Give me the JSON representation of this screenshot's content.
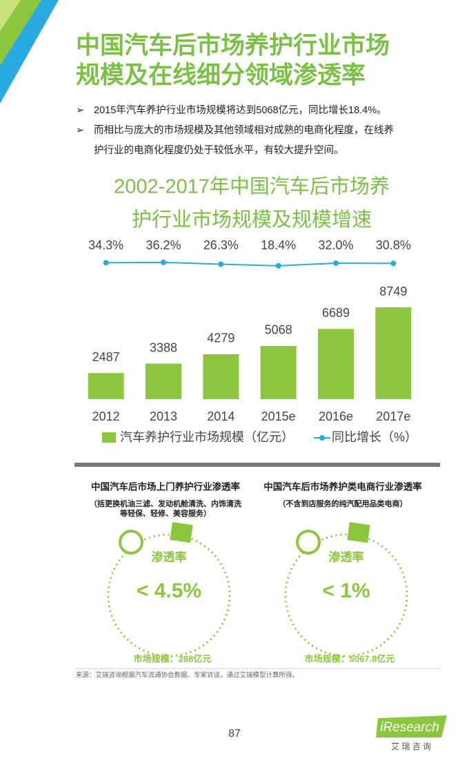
{
  "header": {
    "title": [
      "中国汽车后市场养护行业市场",
      "规模及在线细分领域渗透率"
    ]
  },
  "bullets": [
    [
      "2015年汽车养护行业市场规模将达到5068亿元，同比增长18.4%。"
    ],
    [
      "而相比与庞大的市场规模及其他领域相对成熟的电商化程度，在线养",
      "护行业的电商化程度仍处于较低水平，有较大提升空间。"
    ]
  ],
  "chart_data": {
    "type": "bar-line",
    "title": [
      "2002-2017年中国汽车后市场养",
      "护行业市场规模及规模增速"
    ],
    "categories": [
      "2012",
      "2013",
      "2014",
      "2015e",
      "2016e",
      "2017e"
    ],
    "series": [
      {
        "name": "汽车养护行业市场规模（亿元）",
        "type": "bar",
        "color": "#8cc63f",
        "values": [
          2487,
          3388,
          4279,
          5068,
          6689,
          8749
        ]
      },
      {
        "name": "同比增长（%）",
        "type": "line",
        "axis": "y2",
        "color": "#29abe2",
        "values": [
          34.3,
          36.2,
          26.3,
          18.4,
          32.0,
          30.8
        ],
        "value_labels": [
          "34.3%",
          "36.2%",
          "26.3%",
          "18.4%",
          "32.0%",
          "30.8%"
        ]
      }
    ],
    "ylim": [
      0,
      10000
    ],
    "y2lim": [
      0,
      100
    ],
    "legend": "bottom",
    "grid": false
  },
  "panels": [
    {
      "title": "中国汽车后市场上门养护行业渗透率",
      "note": [
        "（括更换机油三滤、发动机舱清洗、内饰清洗",
        "等轻保、轻修、美容服务）"
      ],
      "label": "渗透率",
      "value": "< 4.5%",
      "size": "市场规模：288亿元"
    },
    {
      "title": "中国汽车后市场养护类电商行业渗透率",
      "note": [
        "（不含到店服务的纯汽配用品类电商）"
      ],
      "label": "渗透率",
      "value": "< 1%",
      "size": "市场规模：5067.8亿元"
    }
  ],
  "source": "来源：艾瑞咨询根据汽车流通协会数据、专家访谈，通过艾瑞模型计算所得。",
  "page_number": "87",
  "logo": {
    "name": "iResearch",
    "subtitle": "艾 瑞 咨 询"
  }
}
